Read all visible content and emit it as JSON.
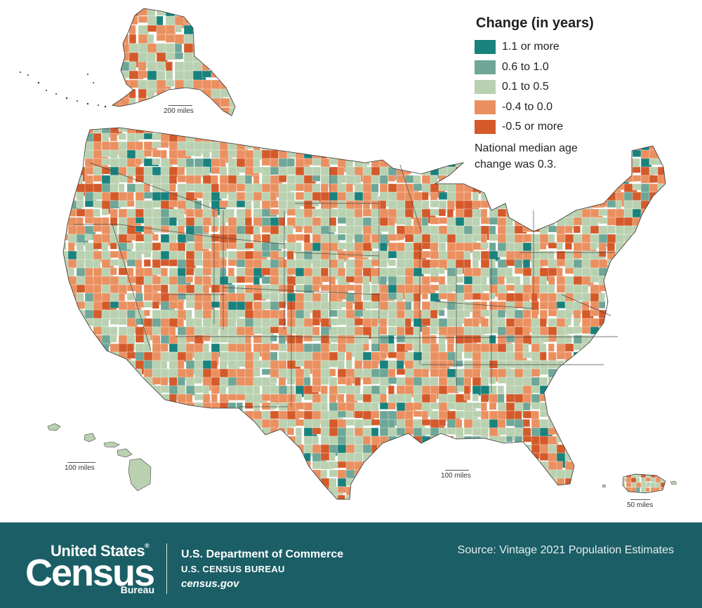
{
  "legend": {
    "title": "Change (in years)",
    "items": [
      {
        "label": "1.1 or more",
        "color": "#19827c"
      },
      {
        "label": "0.6 to 1.0",
        "color": "#6ea697"
      },
      {
        "label": "0.1 to 0.5",
        "color": "#b9d1b0"
      },
      {
        "label": "-0.4 to 0.0",
        "color": "#ea9060"
      },
      {
        "label": "-0.5 or more",
        "color": "#d45a2a"
      }
    ],
    "note": "National median age change was 0.3."
  },
  "scales": {
    "alaska": "200 miles",
    "hawaii": "100 miles",
    "mainland": "100 miles",
    "puerto_rico": "50 miles"
  },
  "map": {
    "regions": [
      "Contiguous United States",
      "Alaska",
      "Hawaii",
      "Puerto Rico"
    ]
  },
  "footer": {
    "logo_top": "United States",
    "logo_reg": "®",
    "logo_main": "Census",
    "logo_bureau": "Bureau",
    "dept_line1": "U.S. Department of Commerce",
    "dept_line2": "U.S. CENSUS BUREAU",
    "dept_line3": "census.gov",
    "source": "Source:  Vintage 2021 Population Estimates",
    "background_color": "#1b5e66"
  }
}
